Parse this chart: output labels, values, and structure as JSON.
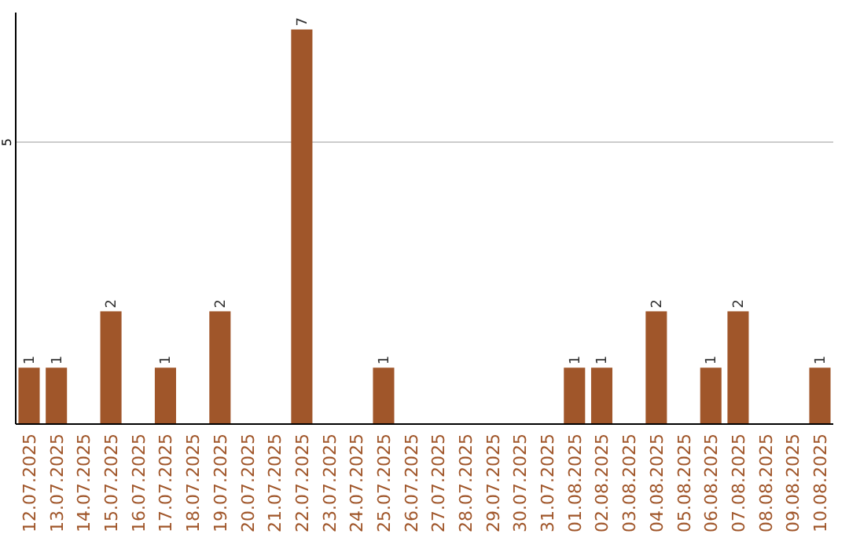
{
  "chart_data": {
    "type": "bar",
    "categories": [
      "12.07.2025",
      "13.07.2025",
      "14.07.2025",
      "15.07.2025",
      "16.07.2025",
      "17.07.2025",
      "18.07.2025",
      "19.07.2025",
      "20.07.2025",
      "21.07.2025",
      "22.07.2025",
      "23.07.2025",
      "24.07.2025",
      "25.07.2025",
      "26.07.2025",
      "27.07.2025",
      "28.07.2025",
      "29.07.2025",
      "30.07.2025",
      "31.07.2025",
      "01.08.2025",
      "02.08.2025",
      "03.08.2025",
      "04.08.2025",
      "05.08.2025",
      "06.08.2025",
      "07.08.2025",
      "08.08.2025",
      "09.08.2025",
      "10.08.2025"
    ],
    "values": [
      1,
      1,
      0,
      2,
      0,
      1,
      0,
      2,
      0,
      0,
      7,
      0,
      0,
      1,
      0,
      0,
      0,
      0,
      0,
      0,
      1,
      1,
      0,
      2,
      0,
      1,
      2,
      0,
      0,
      1
    ],
    "value_labels": [
      "1",
      "1",
      null,
      "2",
      null,
      "1",
      null,
      "2",
      null,
      null,
      "7",
      null,
      null,
      "1",
      null,
      null,
      null,
      null,
      null,
      null,
      "1",
      "1",
      null,
      "2",
      null,
      "1",
      "2",
      null,
      null,
      "1"
    ],
    "color": "#a0562a",
    "ylim": [
      0,
      7.3
    ],
    "yticks": [
      5
    ],
    "grid": "y"
  }
}
